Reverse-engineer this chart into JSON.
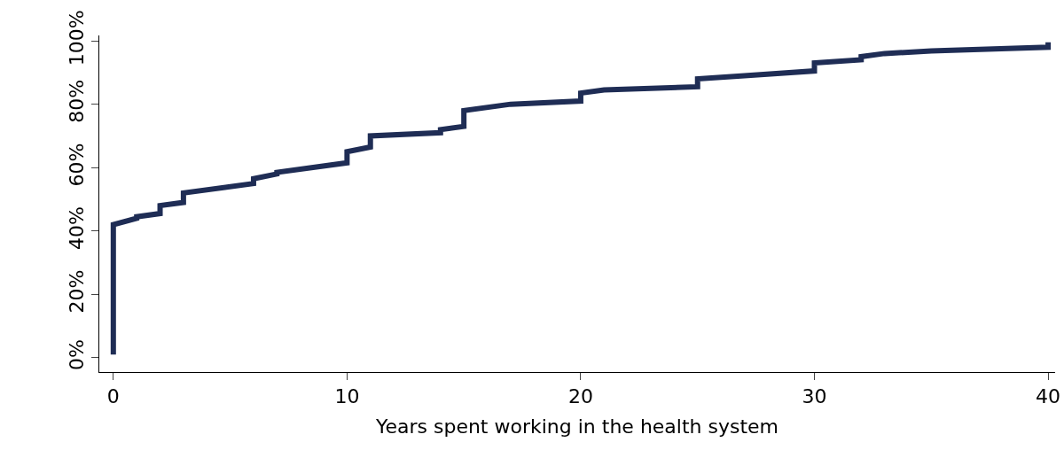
{
  "chart_data": {
    "type": "line",
    "xlabel": "Years spent working in the health system",
    "x": [
      0,
      0,
      1,
      1,
      2,
      2,
      3,
      3,
      6,
      6,
      7,
      7,
      10,
      10,
      11,
      11,
      14,
      14,
      15,
      15,
      17,
      20,
      20,
      21,
      25,
      25,
      27,
      30,
      30,
      32,
      32,
      33,
      35,
      40,
      40
    ],
    "series": [
      {
        "color": "#1f2d55",
        "values": [
          1,
          42,
          44,
          44.5,
          45.5,
          48,
          49,
          52,
          55,
          56.5,
          58,
          58.5,
          61.5,
          65,
          66.5,
          70,
          71,
          72,
          73,
          78,
          80,
          81,
          83.5,
          84.5,
          85.5,
          88,
          89,
          90.5,
          93,
          94,
          95,
          96,
          96.8,
          98,
          99.5
        ]
      }
    ],
    "xlim": [
      -0.6,
      40.3
    ],
    "xticks": [
      0,
      10,
      20,
      30,
      40
    ],
    "ylim": [
      -4.5,
      101.7
    ],
    "yticks": [
      {
        "value": 0,
        "label": "0%"
      },
      {
        "value": 20,
        "label": "20%"
      },
      {
        "value": 40,
        "label": "40%"
      },
      {
        "value": 60,
        "label": "60%"
      },
      {
        "value": 80,
        "label": "80%"
      },
      {
        "value": 100,
        "label": "100%"
      }
    ],
    "grid": false,
    "marker": "none",
    "line_style": "solid"
  }
}
